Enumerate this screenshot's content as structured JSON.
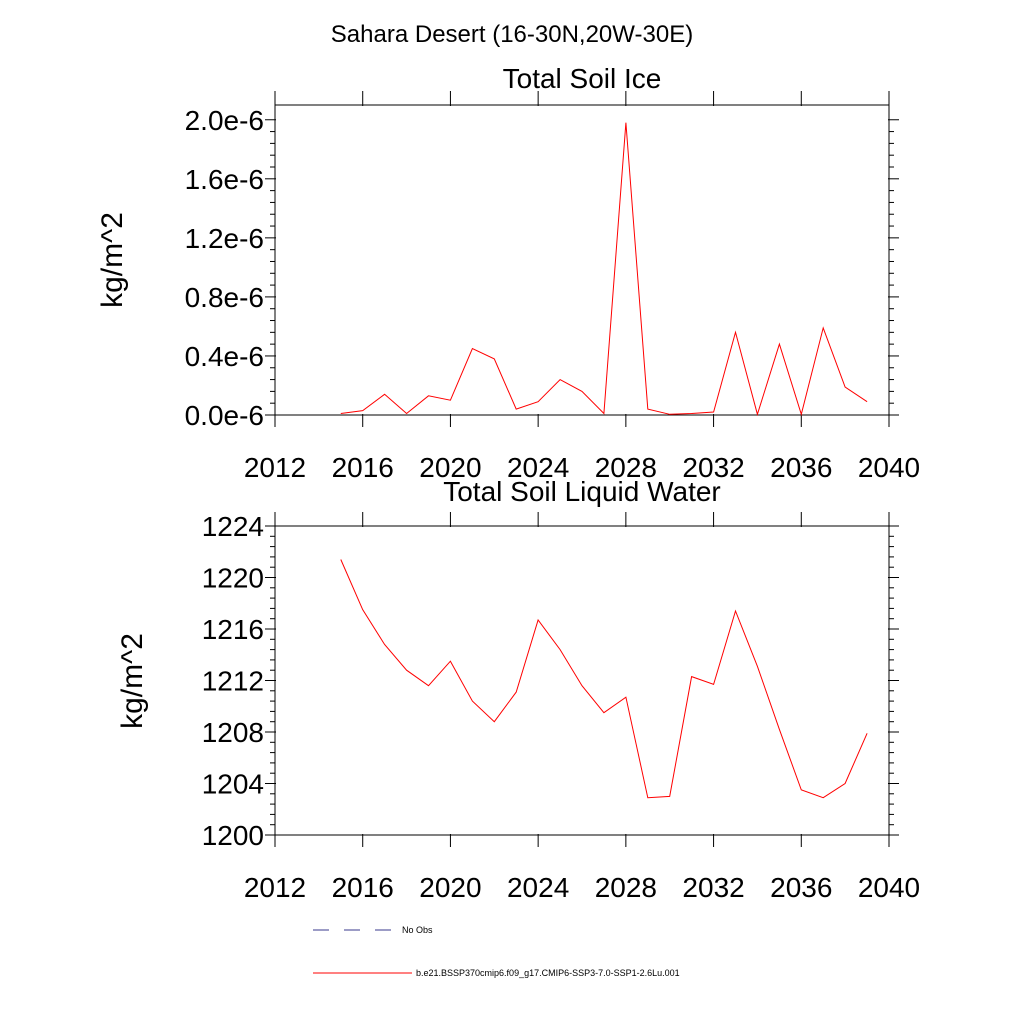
{
  "figure": {
    "suptitle": "Sahara Desert (16-30N,20W-30E)"
  },
  "chart_data": [
    {
      "type": "line",
      "title": "Total Soil Ice",
      "xlabel": "",
      "ylabel": "kg/m^2",
      "xlim": [
        2012,
        2040
      ],
      "ylim": [
        0,
        2.1e-06
      ],
      "x_ticks": [
        2012,
        2016,
        2020,
        2024,
        2028,
        2032,
        2036,
        2040
      ],
      "x_tick_labels": [
        "2012",
        "2016",
        "2020",
        "2024",
        "2028",
        "2032",
        "2036",
        "2040"
      ],
      "y_ticks": [
        0,
        4e-07,
        8e-07,
        1.2e-06,
        1.6e-06,
        2e-06
      ],
      "y_tick_labels": [
        "0.0e-6",
        "0.4e-6",
        "0.8e-6",
        "1.2e-6",
        "1.6e-6",
        "2.0e-6"
      ],
      "grid": false,
      "series": [
        {
          "color": "#ff0000",
          "x": [
            2015,
            2016,
            2017,
            2018,
            2019,
            2020,
            2021,
            2022,
            2023,
            2024,
            2025,
            2026,
            2027,
            2028,
            2029,
            2030,
            2031,
            2032,
            2033,
            2034,
            2035,
            2036,
            2037,
            2038,
            2039
          ],
          "values": [
            1e-08,
            3e-08,
            1.4e-07,
            1e-08,
            1.3e-07,
            1e-07,
            4.5e-07,
            3.8e-07,
            4e-08,
            9e-08,
            2.4e-07,
            1.6e-07,
            1e-08,
            1.98e-06,
            4e-08,
            5e-09,
            1e-08,
            2e-08,
            5.6e-07,
            5e-09,
            4.8e-07,
            5e-09,
            5.9e-07,
            1.9e-07,
            9e-08
          ]
        }
      ]
    },
    {
      "type": "line",
      "title": "Total Soil Liquid Water",
      "xlabel": "",
      "ylabel": "kg/m^2",
      "xlim": [
        2012,
        2040
      ],
      "ylim": [
        1200,
        1224
      ],
      "x_ticks": [
        2012,
        2016,
        2020,
        2024,
        2028,
        2032,
        2036,
        2040
      ],
      "x_tick_labels": [
        "2012",
        "2016",
        "2020",
        "2024",
        "2028",
        "2032",
        "2036",
        "2040"
      ],
      "y_ticks": [
        1200,
        1204,
        1208,
        1212,
        1216,
        1220,
        1224
      ],
      "y_tick_labels": [
        "1200",
        "1204",
        "1208",
        "1212",
        "1216",
        "1220",
        "1224"
      ],
      "grid": false,
      "series": [
        {
          "color": "#ff0000",
          "x": [
            2015,
            2016,
            2017,
            2018,
            2019,
            2020,
            2021,
            2022,
            2023,
            2024,
            2025,
            2026,
            2027,
            2028,
            2029,
            2030,
            2031,
            2032,
            2033,
            2034,
            2035,
            2036,
            2037,
            2038,
            2039
          ],
          "values": [
            1221.4,
            1217.5,
            1214.8,
            1212.8,
            1211.6,
            1213.5,
            1210.4,
            1208.8,
            1211.1,
            1216.7,
            1214.4,
            1211.6,
            1209.5,
            1210.7,
            1202.9,
            1203.0,
            1212.3,
            1211.7,
            1217.4,
            1213.1,
            1208.2,
            1203.5,
            1202.9,
            1204.0,
            1207.9
          ]
        }
      ]
    }
  ],
  "legend": {
    "position": "bottom",
    "entries": [
      {
        "label": "No Obs",
        "color": "#3a3a8c",
        "style": "dashed"
      },
      {
        "label": "b.e21.BSSP370cmip6.f09_g17.CMIP6-SSP3-7.0-SSP1-2.6Lu.001",
        "color": "#ff0000",
        "style": "solid"
      }
    ]
  }
}
